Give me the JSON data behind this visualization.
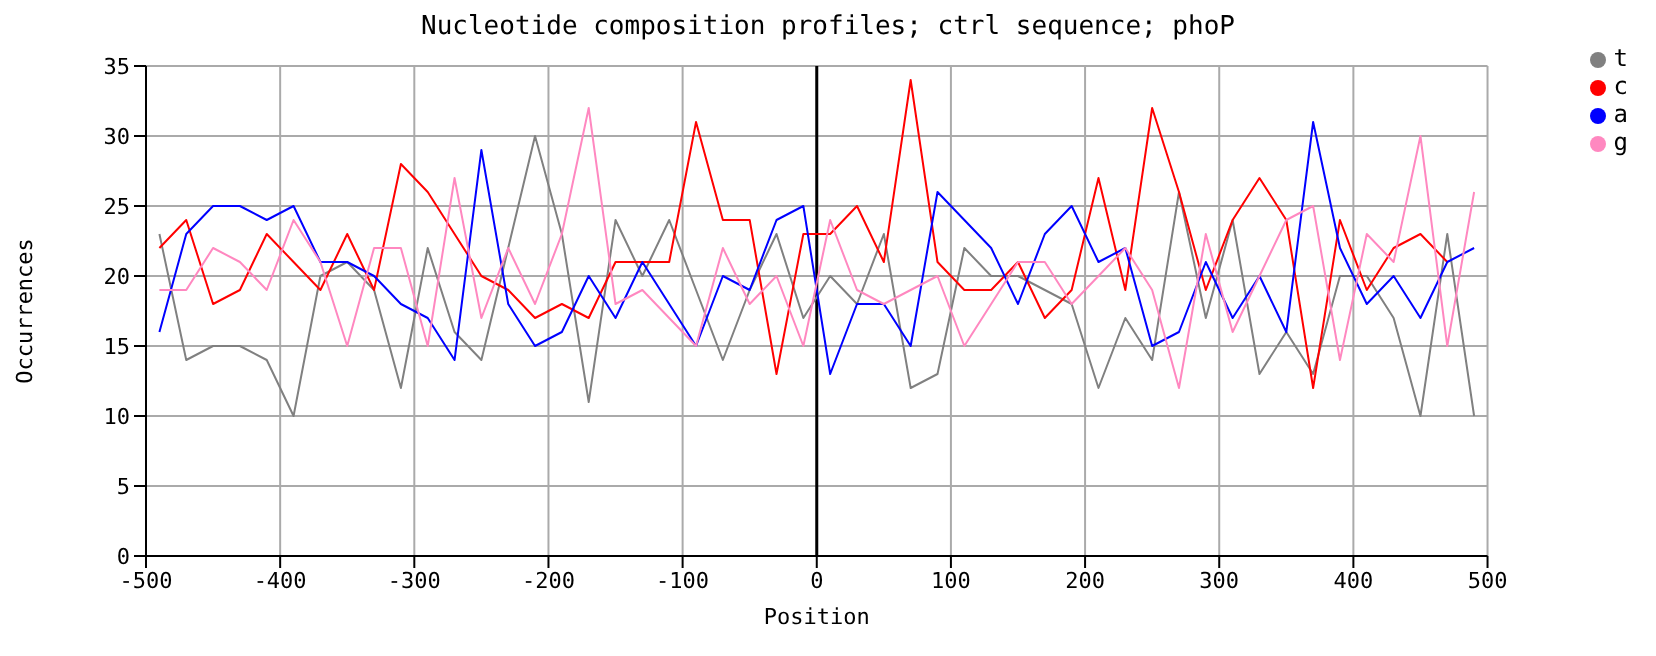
{
  "chart_data": {
    "type": "line",
    "title": "Nucleotide composition profiles; ctrl sequence; phoP",
    "xlabel": "Position",
    "ylabel": "Occurrences",
    "x": [
      -490,
      -470,
      -450,
      -430,
      -410,
      -390,
      -370,
      -350,
      -330,
      -310,
      -290,
      -270,
      -250,
      -230,
      -210,
      -190,
      -170,
      -150,
      -130,
      -110,
      -90,
      -70,
      -50,
      -30,
      -10,
      10,
      30,
      50,
      70,
      90,
      110,
      130,
      150,
      170,
      190,
      210,
      230,
      250,
      270,
      290,
      310,
      330,
      350,
      370,
      390,
      410,
      430,
      450,
      470,
      490
    ],
    "series": [
      {
        "name": "t",
        "color": "#808080",
        "values": [
          23,
          14,
          15,
          15,
          14,
          10,
          20,
          21,
          19,
          12,
          22,
          16,
          14,
          22,
          30,
          23,
          11,
          24,
          20,
          24,
          19,
          14,
          19,
          23,
          17,
          20,
          18,
          23,
          12,
          13,
          22,
          20,
          20,
          19,
          18,
          12,
          17,
          14,
          26,
          17,
          24,
          13,
          16,
          13,
          20,
          20,
          17,
          10,
          23,
          10
        ]
      },
      {
        "name": "c",
        "color": "#ff0000",
        "values": [
          22,
          24,
          18,
          19,
          23,
          21,
          19,
          23,
          19,
          28,
          26,
          23,
          20,
          19,
          17,
          18,
          17,
          21,
          21,
          21,
          31,
          24,
          24,
          13,
          23,
          23,
          25,
          21,
          34,
          21,
          19,
          19,
          21,
          17,
          19,
          27,
          19,
          32,
          26,
          19,
          24,
          27,
          24,
          12,
          24,
          19,
          22,
          23,
          21,
          null
        ]
      },
      {
        "name": "a",
        "color": "#0000ff",
        "values": [
          16,
          23,
          25,
          25,
          24,
          25,
          21,
          21,
          20,
          18,
          17,
          14,
          29,
          18,
          15,
          16,
          20,
          17,
          21,
          18,
          15,
          20,
          19,
          24,
          25,
          13,
          18,
          18,
          15,
          26,
          24,
          22,
          18,
          23,
          25,
          21,
          22,
          15,
          16,
          21,
          17,
          20,
          16,
          31,
          22,
          18,
          20,
          17,
          21,
          22
        ]
      },
      {
        "name": "g",
        "color": "#ff88c0",
        "values": [
          19,
          19,
          22,
          21,
          19,
          24,
          21,
          15,
          22,
          22,
          15,
          27,
          17,
          22,
          18,
          23,
          32,
          18,
          19,
          17,
          15,
          22,
          18,
          20,
          15,
          24,
          19,
          18,
          19,
          20,
          15,
          18,
          21,
          21,
          18,
          20,
          22,
          19,
          12,
          23,
          16,
          20,
          24,
          25,
          14,
          23,
          21,
          30,
          15,
          26
        ]
      }
    ],
    "xlim": [
      -500,
      500
    ],
    "xticks": [
      -500,
      -400,
      -300,
      -200,
      -100,
      0,
      100,
      200,
      300,
      400,
      500
    ],
    "ylim": [
      0,
      35
    ],
    "yticks": [
      0,
      5,
      10,
      15,
      20,
      25,
      30,
      35
    ],
    "ref_lines": [
      {
        "axis": "x",
        "value": 0,
        "color": "#000000"
      }
    ],
    "grid": true,
    "legend": "top right",
    "marker": "none",
    "line_style": "solid"
  }
}
